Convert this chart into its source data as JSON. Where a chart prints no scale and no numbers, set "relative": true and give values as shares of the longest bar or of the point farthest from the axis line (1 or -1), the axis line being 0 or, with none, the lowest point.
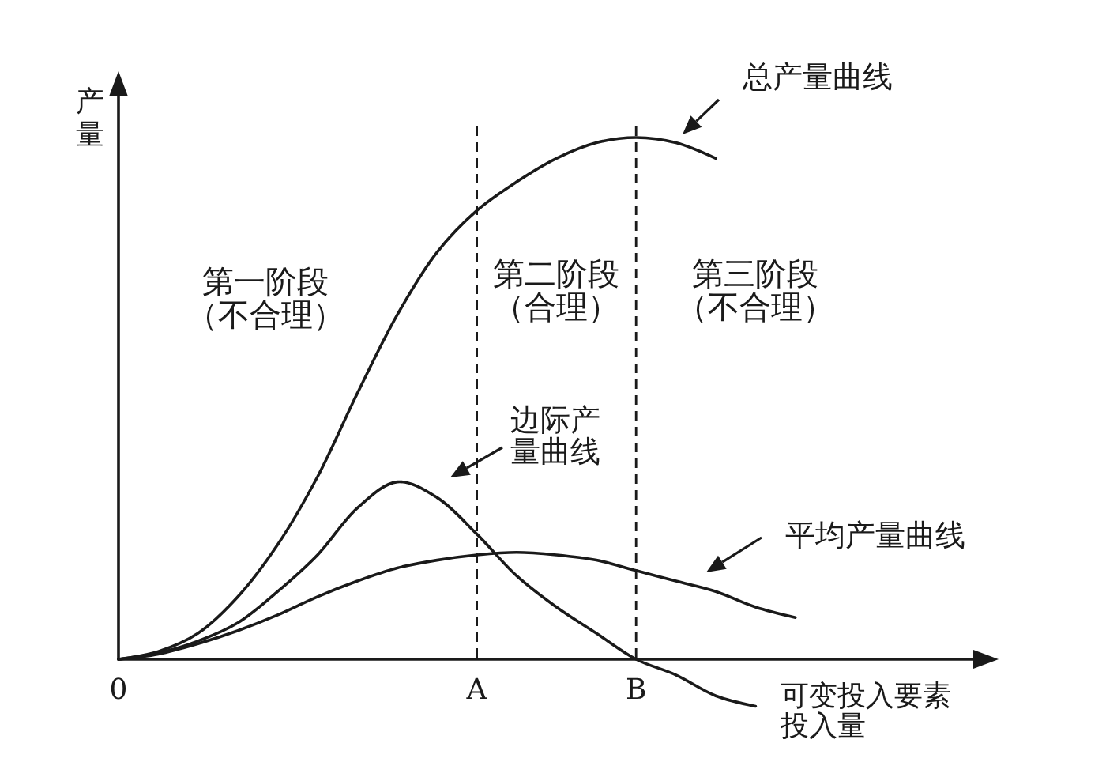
{
  "chart_data": {
    "type": "line",
    "relative": true,
    "ylabel": "产量",
    "xlabel": "可变投入要素投入量",
    "categories": [
      "0",
      null,
      null,
      null,
      null,
      null,
      null,
      null,
      null,
      "A",
      null,
      null,
      null,
      "B",
      null,
      null,
      null,
      null
    ],
    "series": [
      {
        "name": "总产量曲线",
        "color": "#1a1a1a",
        "values": [
          0,
          0.015,
          0.05,
          0.12,
          0.22,
          0.35,
          0.51,
          0.66,
          0.78,
          0.86,
          0.915,
          0.96,
          0.99,
          1,
          0.99,
          0.96,
          null,
          null
        ]
      },
      {
        "name": "边际产量曲线",
        "color": "#1a1a1a",
        "values": [
          0,
          0.012,
          0.035,
          0.07,
          0.13,
          0.2,
          0.29,
          0.34,
          0.31,
          0.24,
          0.16,
          0.1,
          0.05,
          0,
          -0.03,
          -0.07,
          -0.09,
          null
        ]
      },
      {
        "name": "平均产量曲线",
        "color": "#1a1a1a",
        "values": [
          0,
          0.01,
          0.03,
          0.055,
          0.085,
          0.12,
          0.15,
          0.175,
          0.19,
          0.2,
          0.205,
          0.2,
          0.19,
          0.17,
          0.15,
          0.13,
          0.1,
          0.08
        ]
      }
    ],
    "ref_lines": [
      {
        "axis": "x",
        "value": "A",
        "line_style": "dashed"
      },
      {
        "axis": "x",
        "value": "B",
        "line_style": "dashed"
      }
    ],
    "annotations": [
      "第一阶段（不合理）",
      "第二阶段（合理）",
      "第三阶段（不合理）"
    ]
  }
}
